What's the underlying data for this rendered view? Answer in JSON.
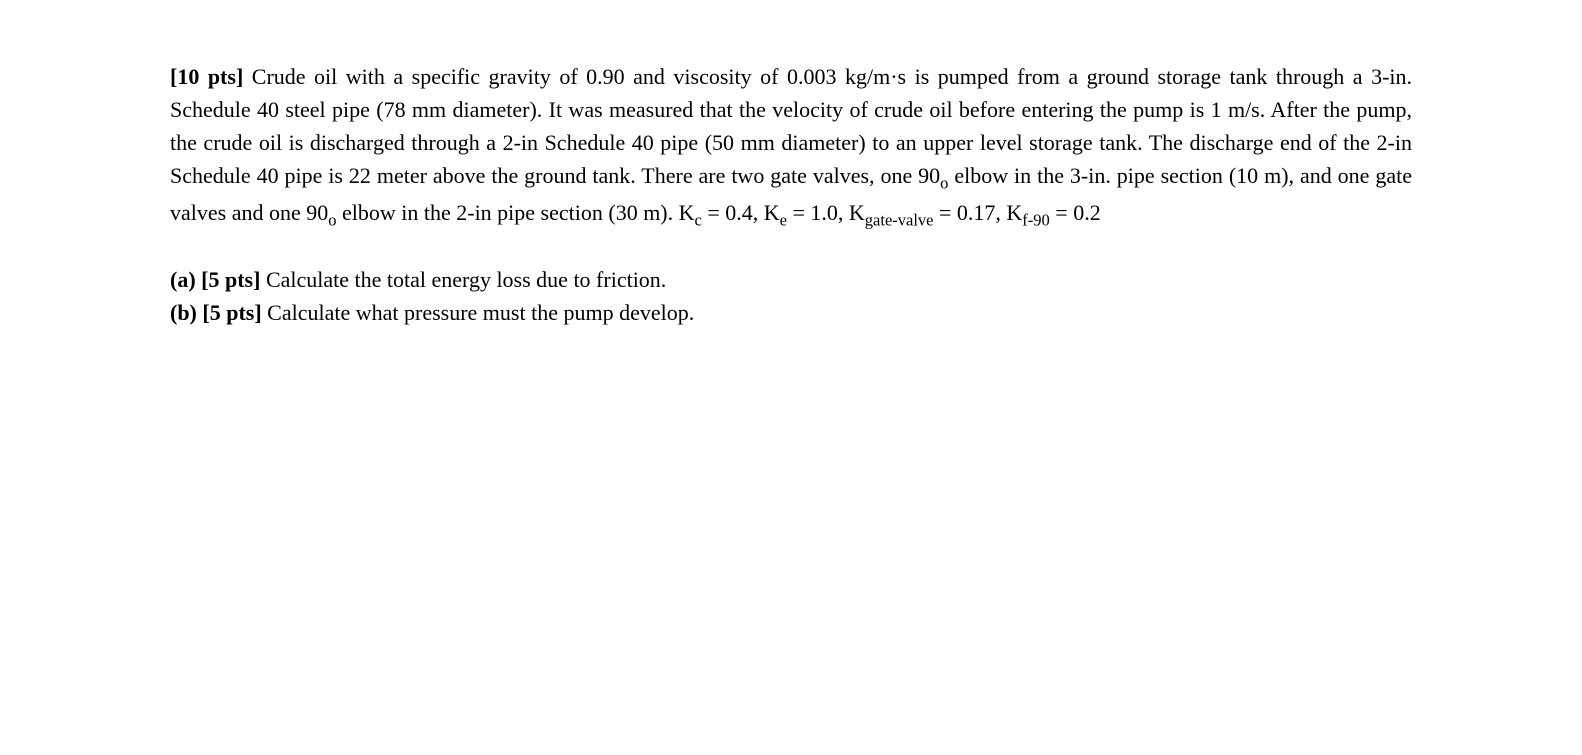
{
  "problem": {
    "points_label": "[10 pts]",
    "statement_part1": " Crude oil with a specific gravity of 0.90 and viscosity of 0.003 kg/m·s is pumped from a ground storage tank through a 3-in. Schedule 40 steel pipe (78 mm diameter). It was measured that the velocity of crude oil before entering the pump is 1 m/s. After the pump, the crude oil is discharged through a 2-in Schedule 40 pipe (50 mm diameter) to an upper level storage tank. The discharge end of the 2-in Schedule 40 pipe is 22 meter above the ground tank. There are two gate valves, one 90",
    "deg_o1": "o",
    "statement_part2": " elbow in the 3-in. pipe section (10 m), and one gate valves and one 90",
    "deg_o2": "o",
    "statement_part3": " elbow in the 2-in pipe section (30 m). K",
    "sub_c": "c",
    "eq1": " = 0.4, K",
    "sub_e": "e",
    "eq2": " = 1.0, K",
    "sub_gate": "gate-valve",
    "eq3": " = 0.17, K",
    "sub_f90": "f-90",
    "eq4": " = 0.2"
  },
  "parts": {
    "a": {
      "label": "(a) [5 pts]",
      "text": " Calculate the total energy loss due to friction."
    },
    "b": {
      "label": "(b) [5 pts]",
      "text": " Calculate what pressure must the pump develop."
    }
  }
}
